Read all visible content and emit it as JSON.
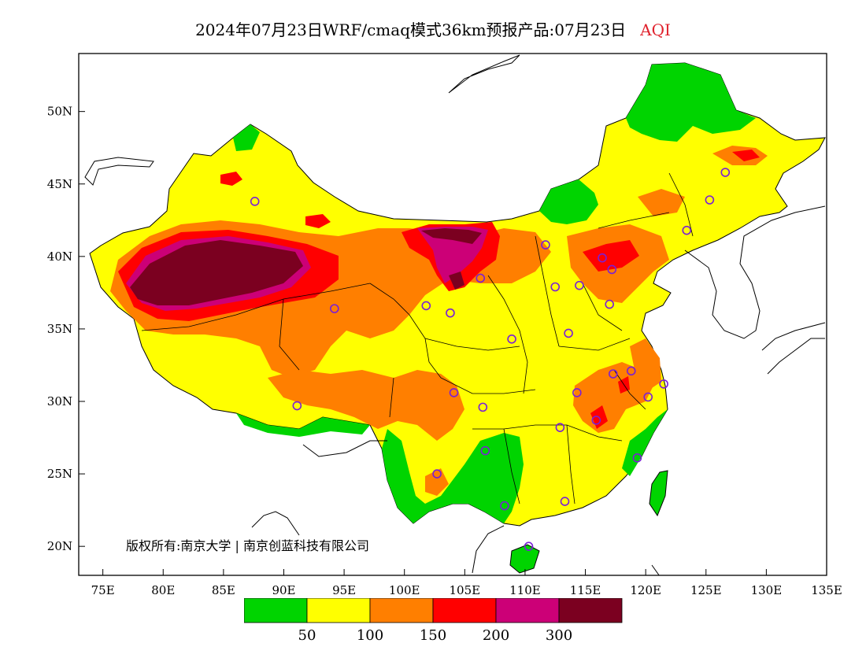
{
  "title": {
    "main": "2024年07月23日WRF/cmaq模式36km预报产品:07月23日",
    "variable": "AQI"
  },
  "axes": {
    "lon_labels": [
      "75E",
      "80E",
      "85E",
      "90E",
      "95E",
      "100E",
      "105E",
      "110E",
      "115E",
      "120E",
      "125E",
      "130E",
      "135E"
    ],
    "lat_labels": [
      "50N",
      "45N",
      "40N",
      "35N",
      "30N",
      "25N",
      "20N"
    ],
    "lon_range": [
      73,
      135
    ],
    "lat_range": [
      18,
      54
    ]
  },
  "copyright": "版权所有:南京大学 | 南京创蓝科技有限公司",
  "legend": {
    "colors": [
      "#00d400",
      "#ffff00",
      "#ff7f00",
      "#ff0000",
      "#cc0077",
      "#7b0020"
    ],
    "labels": [
      "50",
      "100",
      "150",
      "200",
      "300"
    ]
  },
  "stations": [
    [
      87.6,
      43.8
    ],
    [
      91.1,
      29.7
    ],
    [
      94.2,
      36.4
    ],
    [
      101.8,
      36.6
    ],
    [
      103.8,
      36.1
    ],
    [
      106.3,
      38.5
    ],
    [
      111.7,
      40.8
    ],
    [
      112.5,
      37.9
    ],
    [
      114.5,
      38.0
    ],
    [
      116.4,
      39.9
    ],
    [
      117.2,
      39.1
    ],
    [
      117.0,
      36.7
    ],
    [
      113.6,
      34.7
    ],
    [
      108.9,
      34.3
    ],
    [
      104.1,
      30.6
    ],
    [
      106.5,
      29.6
    ],
    [
      106.7,
      26.6
    ],
    [
      102.7,
      25.0
    ],
    [
      108.3,
      22.8
    ],
    [
      113.3,
      23.1
    ],
    [
      110.3,
      20.0
    ],
    [
      112.9,
      28.2
    ],
    [
      114.3,
      30.6
    ],
    [
      115.9,
      28.7
    ],
    [
      117.3,
      31.9
    ],
    [
      118.8,
      32.1
    ],
    [
      121.5,
      31.2
    ],
    [
      120.2,
      30.3
    ],
    [
      119.3,
      26.1
    ],
    [
      123.4,
      41.8
    ],
    [
      125.3,
      43.9
    ],
    [
      126.6,
      45.8
    ]
  ]
}
